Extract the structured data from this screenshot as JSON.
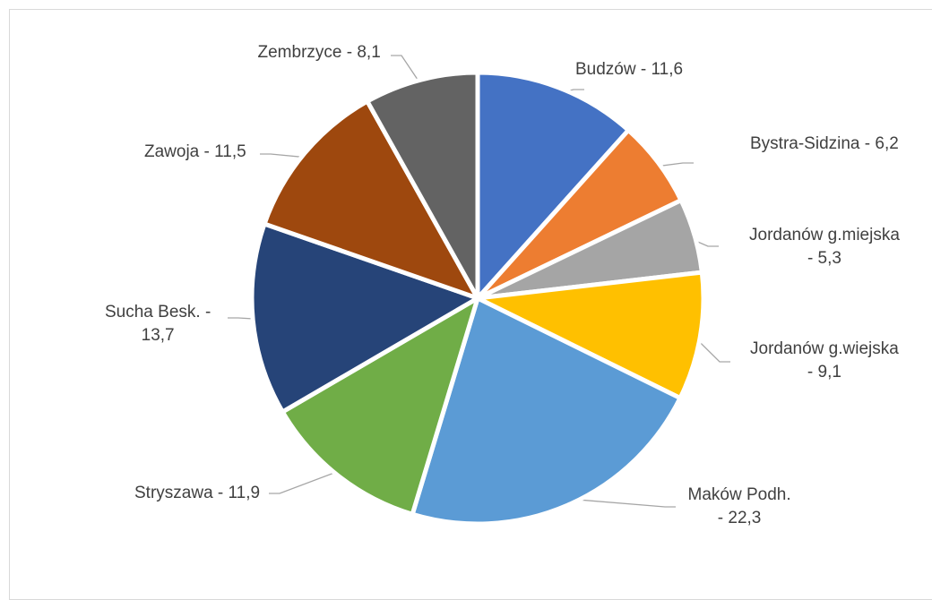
{
  "chart_data": {
    "type": "pie",
    "slices": [
      {
        "label": "Budzów - 11,6",
        "label_lines": [
          "Budzów - 11,6"
        ],
        "value": 11.6,
        "color": "#4472C4"
      },
      {
        "label": "Bystra-Sidzina - 6,2",
        "label_lines": [
          "Bystra-Sidzina - 6,2"
        ],
        "value": 6.2,
        "color": "#ED7D31"
      },
      {
        "label": "Jordanów g.miejska - 5,3",
        "label_lines": [
          "Jordanów g.miejska",
          "- 5,3"
        ],
        "value": 5.3,
        "color": "#A5A5A5"
      },
      {
        "label": "Jordanów g.wiejska - 9,1",
        "label_lines": [
          "Jordanów g.wiejska",
          "- 9,1"
        ],
        "value": 9.1,
        "color": "#FFC000"
      },
      {
        "label": "Maków Podh. - 22,3",
        "label_lines": [
          "Maków Podh.",
          "- 22,3"
        ],
        "value": 22.3,
        "color": "#5B9BD5"
      },
      {
        "label": "Stryszawa - 11,9",
        "label_lines": [
          "Stryszawa - 11,9"
        ],
        "value": 11.9,
        "color": "#70AD47"
      },
      {
        "label": "Sucha Besk. - 13,7",
        "label_lines": [
          "Sucha Besk. -",
          "13,7"
        ],
        "value": 13.7,
        "color": "#264478"
      },
      {
        "label": "Zawoja - 11,5",
        "label_lines": [
          "Zawoja - 11,5"
        ],
        "value": 11.5,
        "color": "#9E480E"
      },
      {
        "label": "Zembrzyce - 8,1",
        "label_lines": [
          "Zembrzyce - 8,1"
        ],
        "value": 8.1,
        "color": "#636363"
      }
    ]
  }
}
